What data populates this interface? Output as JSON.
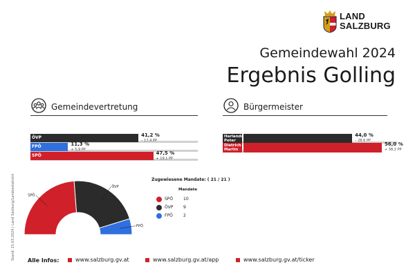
{
  "logo": {
    "line1": "LAND",
    "line2": "SALZBURG"
  },
  "header": {
    "subtitle": "Gemeindewahl 2024",
    "title": "Ergebnis Golling"
  },
  "sections": {
    "council": "Gemeindevertretung",
    "mayor": "Bürgermeister"
  },
  "chart_data": [
    {
      "type": "bar",
      "section": "Gemeindevertretung",
      "categories": [
        "ÖVP",
        "FPÖ",
        "SPÖ"
      ],
      "values": [
        41.2,
        11.3,
        47.5
      ],
      "value_labels": [
        "41,2 %",
        "11,3 %",
        "47,5 %"
      ],
      "changes": [
        "– 17,4 PP",
        "+ 5,9 PP",
        "+ 19,1 PP"
      ],
      "colors": [
        "#2b2b2b",
        "#2f6fe0",
        "#d0202a"
      ],
      "xlim": [
        0,
        100
      ]
    },
    {
      "type": "bar",
      "section": "Bürgermeister",
      "categories": [
        "Harlander Peter",
        "Dietrich Martin"
      ],
      "value_labels": [
        "44,0 %",
        "56,0 %"
      ],
      "values": [
        44.0,
        56.0
      ],
      "changes": [
        "– 28,6 PP",
        "+ 38,2 PP"
      ],
      "colors": [
        "#2b2b2b",
        "#d0202a"
      ],
      "xlim": [
        0,
        100
      ]
    },
    {
      "type": "pie",
      "style": "semicircle",
      "categories": [
        "SPÖ",
        "ÖVP",
        "FPÖ"
      ],
      "values": [
        10,
        9,
        2
      ],
      "colors": [
        "#d0202a",
        "#2b2b2b",
        "#2f6fe0"
      ],
      "slice_labels": [
        "SPÖ",
        "ÖVP",
        "FPÖ"
      ]
    }
  ],
  "mayor_labels": [
    [
      "Harlander",
      "Peter"
    ],
    [
      "Dietrich",
      "Martin"
    ]
  ],
  "mandates": {
    "title": "Zugewiesene Mandate: ( 21 / 21 )",
    "column_header": "Mandate",
    "rows": [
      {
        "party": "SPÖ",
        "seats": "10",
        "color": "#d0202a"
      },
      {
        "party": "ÖVP",
        "seats": "9",
        "color": "#2b2b2b"
      },
      {
        "party": "FPÖ",
        "seats": "2",
        "color": "#2f6fe0"
      }
    ]
  },
  "side_note": "Stand: 15.03.2024 | Land Salzburg/Landesstatistik",
  "footer": {
    "label": "Alle Infos:",
    "links": [
      "www.salzburg.gv.at",
      "www.salzburg.gv.at/app",
      "www.salzburg.gv.at/ticker"
    ]
  }
}
